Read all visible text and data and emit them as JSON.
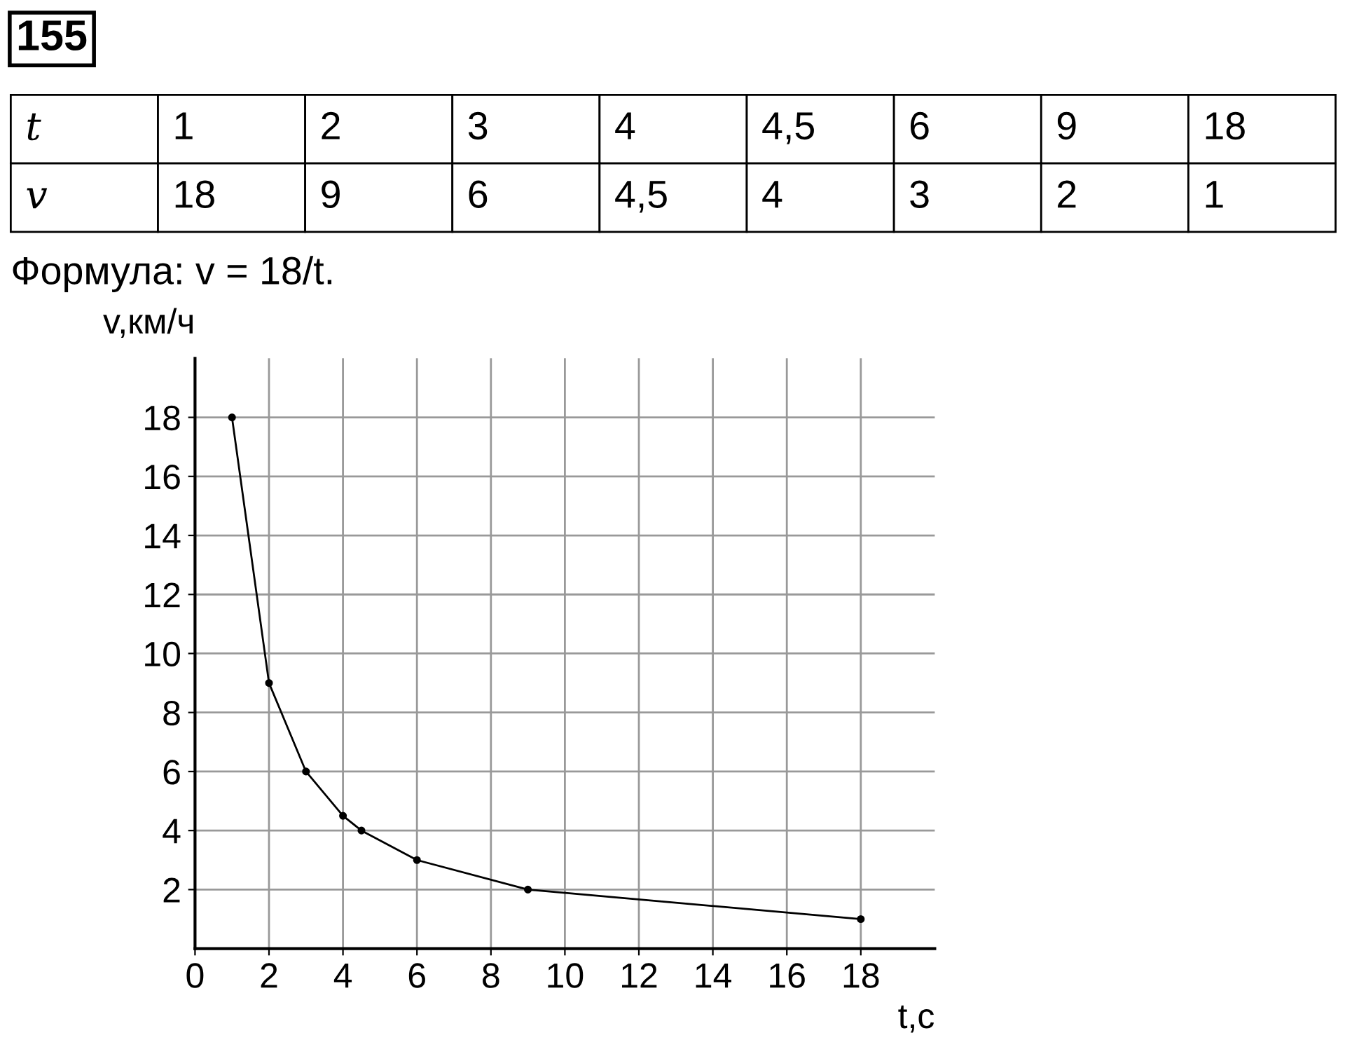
{
  "chart_data": [
    {
      "type": "other",
      "title": "155",
      "annotations": [
        "t",
        "1",
        "2",
        "3",
        "4",
        "4,5",
        "6",
        "9",
        "18",
        "v",
        "18",
        "9",
        "6",
        "4,5",
        "4",
        "3",
        "2",
        "1",
        "Формула: v = 18/t."
      ]
    },
    {
      "type": "line",
      "xlabel": "t,c",
      "ylabel": "v,км/ч",
      "x": [
        1,
        2,
        3,
        4,
        4.5,
        6,
        9,
        18
      ],
      "values": [
        18,
        9,
        6,
        4.5,
        4,
        3,
        2,
        1
      ],
      "color": "#000000",
      "xlim": [
        0,
        20
      ],
      "ylim": [
        0,
        20
      ],
      "xticks": [
        0,
        2,
        4,
        6,
        8,
        10,
        12,
        14,
        16,
        18
      ],
      "yticks": [
        2,
        4,
        6,
        8,
        10,
        12,
        14,
        16,
        18
      ],
      "grid": true,
      "marker": "circle",
      "line_style": "solid"
    }
  ]
}
